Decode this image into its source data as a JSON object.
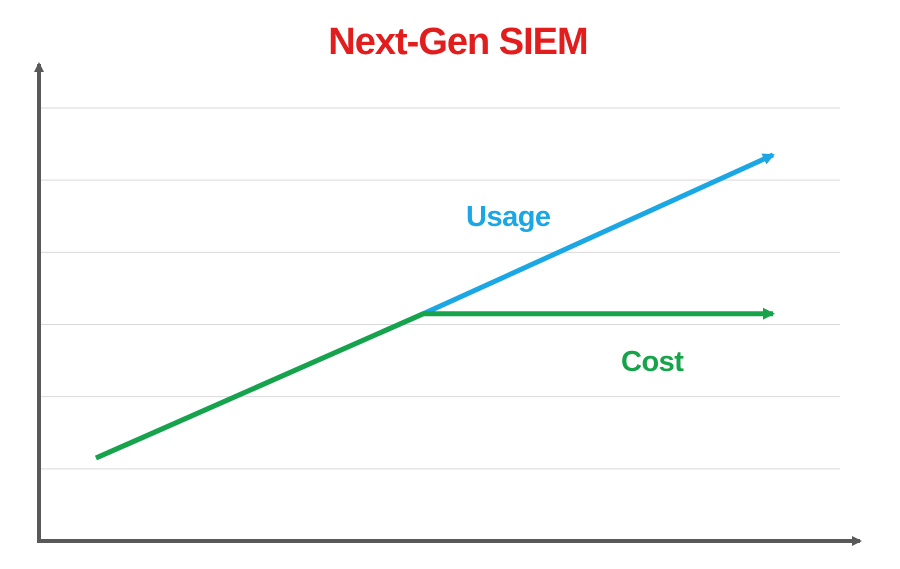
{
  "chart_data": {
    "type": "line",
    "title": "Next-Gen SIEM",
    "xlabel": "",
    "ylabel": "",
    "xlim": [
      0,
      10
    ],
    "ylim": [
      0,
      6
    ],
    "grid": true,
    "axis_arrows": true,
    "series": [
      {
        "name": "Usage",
        "color": "#1ba7e3",
        "x": [
          0,
          4.4,
          9.1
        ],
        "y": [
          1.15,
          3.15,
          5.35
        ]
      },
      {
        "name": "Cost",
        "color": "#16a34a",
        "x": [
          0,
          4.4,
          9.1
        ],
        "y": [
          1.15,
          3.15,
          3.15
        ]
      }
    ]
  },
  "colors": {
    "title": "#e11d1d",
    "axis": "#595959",
    "grid": "#d9d9d9"
  }
}
